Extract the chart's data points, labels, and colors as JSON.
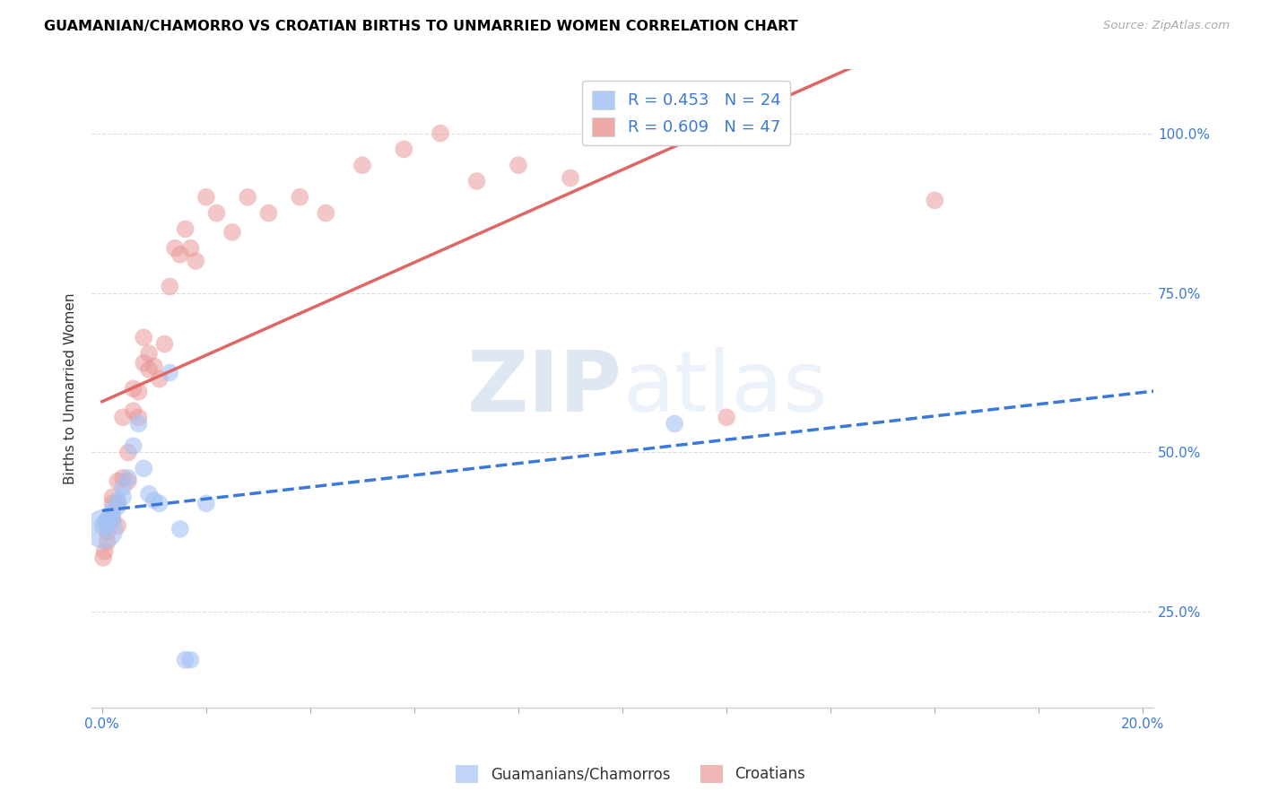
{
  "title": "GUAMANIAN/CHAMORRO VS CROATIAN BIRTHS TO UNMARRIED WOMEN CORRELATION CHART",
  "source": "Source: ZipAtlas.com",
  "ylabel": "Births to Unmarried Women",
  "legend_label_blue": "R = 0.453   N = 24",
  "legend_label_pink": "R = 0.609   N = 47",
  "legend_label_bottom_blue": "Guamanians/Chamorros",
  "legend_label_bottom_pink": "Croatians",
  "blue_color": "#a4c2f4",
  "pink_color": "#ea9999",
  "blue_line_color": "#3c78d8",
  "pink_line_color": "#e06666",
  "background_color": "#ffffff",
  "grid_color": "#dddddd",
  "watermark_zip": "ZIP",
  "watermark_atlas": "atlas",
  "x_min": -0.002,
  "x_max": 0.202,
  "y_min": 0.1,
  "y_max": 1.1,
  "y_ticks": [
    0.25,
    0.5,
    0.75,
    1.0
  ],
  "y_tick_labels": [
    "25.0%",
    "50.0%",
    "75.0%",
    "100.0%"
  ],
  "x_ticks": [
    0.0,
    0.02,
    0.04,
    0.06,
    0.08,
    0.1,
    0.12,
    0.14,
    0.16,
    0.18,
    0.2
  ],
  "x_tick_labels": [
    "0.0%",
    "",
    "",
    "",
    "",
    "",
    "",
    "",
    "",
    "",
    "20.0%"
  ],
  "guamanian_x": [
    0.0003,
    0.0005,
    0.001,
    0.001,
    0.0015,
    0.002,
    0.002,
    0.003,
    0.003,
    0.004,
    0.004,
    0.005,
    0.006,
    0.007,
    0.008,
    0.009,
    0.01,
    0.011,
    0.013,
    0.015,
    0.016,
    0.017,
    0.02,
    0.11
  ],
  "guamanian_y": [
    0.38,
    0.385,
    0.39,
    0.39,
    0.4,
    0.4,
    0.41,
    0.415,
    0.425,
    0.43,
    0.445,
    0.46,
    0.51,
    0.545,
    0.475,
    0.435,
    0.425,
    0.42,
    0.625,
    0.38,
    0.175,
    0.175,
    0.42,
    0.545
  ],
  "guamanian_sizes": [
    1000,
    300,
    250,
    250,
    200,
    200,
    200,
    200,
    200,
    200,
    200,
    200,
    200,
    200,
    200,
    200,
    200,
    200,
    200,
    200,
    200,
    200,
    200,
    200
  ],
  "croatian_x": [
    0.0002,
    0.0005,
    0.001,
    0.001,
    0.001,
    0.002,
    0.002,
    0.002,
    0.003,
    0.003,
    0.003,
    0.004,
    0.004,
    0.005,
    0.005,
    0.006,
    0.006,
    0.007,
    0.007,
    0.008,
    0.008,
    0.009,
    0.009,
    0.01,
    0.011,
    0.012,
    0.013,
    0.014,
    0.015,
    0.016,
    0.017,
    0.018,
    0.02,
    0.022,
    0.025,
    0.028,
    0.032,
    0.038,
    0.043,
    0.05,
    0.058,
    0.065,
    0.072,
    0.08,
    0.09,
    0.12,
    0.16
  ],
  "croatian_y": [
    0.335,
    0.345,
    0.36,
    0.375,
    0.395,
    0.395,
    0.42,
    0.43,
    0.385,
    0.42,
    0.455,
    0.46,
    0.555,
    0.455,
    0.5,
    0.565,
    0.6,
    0.555,
    0.595,
    0.64,
    0.68,
    0.63,
    0.655,
    0.635,
    0.615,
    0.67,
    0.76,
    0.82,
    0.81,
    0.85,
    0.82,
    0.8,
    0.9,
    0.875,
    0.845,
    0.9,
    0.875,
    0.9,
    0.875,
    0.95,
    0.975,
    1.0,
    0.925,
    0.95,
    0.93,
    0.555,
    0.895
  ],
  "croatian_sizes": [
    200,
    200,
    200,
    200,
    200,
    200,
    200,
    200,
    200,
    200,
    200,
    200,
    200,
    200,
    200,
    200,
    200,
    200,
    200,
    200,
    200,
    200,
    200,
    200,
    200,
    200,
    200,
    200,
    200,
    200,
    200,
    200,
    200,
    200,
    200,
    200,
    200,
    200,
    200,
    200,
    200,
    200,
    200,
    200,
    200,
    200,
    200
  ]
}
